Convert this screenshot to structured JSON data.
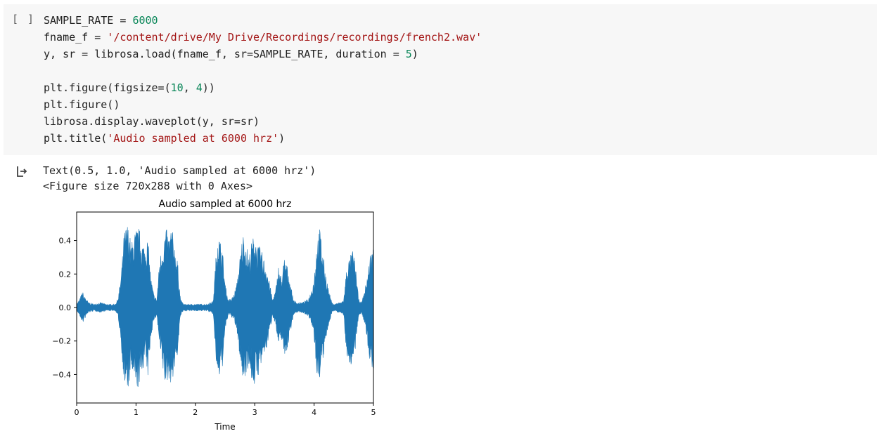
{
  "cell": {
    "run_indicator": "[ ]",
    "code_lines": [
      [
        {
          "t": "SAMPLE_RATE = ",
          "c": ""
        },
        {
          "t": "6000",
          "c": "num"
        }
      ],
      [
        {
          "t": "fname_f = ",
          "c": ""
        },
        {
          "t": "'/content/drive/My Drive/Recordings/recordings/french2.wav'",
          "c": "str"
        }
      ],
      [
        {
          "t": "y, sr = librosa.load(fname_f, sr=SAMPLE_RATE, duration = ",
          "c": ""
        },
        {
          "t": "5",
          "c": "num"
        },
        {
          "t": ")",
          "c": ""
        }
      ],
      [],
      [
        {
          "t": "plt.figure(figsize=(",
          "c": ""
        },
        {
          "t": "10",
          "c": "num"
        },
        {
          "t": ", ",
          "c": ""
        },
        {
          "t": "4",
          "c": "num"
        },
        {
          "t": "))",
          "c": ""
        }
      ],
      [
        {
          "t": "plt.figure()",
          "c": ""
        }
      ],
      [
        {
          "t": "librosa.display.waveplot(y, sr=sr)",
          "c": ""
        }
      ],
      [
        {
          "t": "plt.title(",
          "c": ""
        },
        {
          "t": "'Audio sampled at 6000 hrz'",
          "c": "str"
        },
        {
          "t": ")",
          "c": ""
        }
      ]
    ]
  },
  "output": {
    "icon": "output-arrow-icon",
    "lines": [
      "Text(0.5, 1.0, 'Audio sampled at 6000 hrz')",
      "<Figure size 720x288 with 0 Axes>"
    ]
  },
  "chart_data": {
    "type": "area",
    "title": "Audio sampled at 6000 hrz",
    "xlabel": "Time",
    "ylabel": "",
    "xlim": [
      0,
      5
    ],
    "ylim": [
      -0.57,
      0.57
    ],
    "xticks": [
      0,
      1,
      2,
      3,
      4,
      5
    ],
    "yticks": [
      0.4,
      0.2,
      0.0,
      -0.2,
      -0.4
    ],
    "ytick_labels": [
      "0.4",
      "0.2",
      "0.0",
      "−0.2",
      "−0.4"
    ],
    "grid": false,
    "color": "#1f77b4",
    "envelope": {
      "x": [
        0.0,
        0.05,
        0.1,
        0.12,
        0.15,
        0.2,
        0.3,
        0.4,
        0.5,
        0.6,
        0.65,
        0.7,
        0.75,
        0.8,
        0.85,
        0.88,
        0.92,
        0.95,
        1.0,
        1.05,
        1.1,
        1.15,
        1.2,
        1.25,
        1.3,
        1.35,
        1.4,
        1.45,
        1.5,
        1.55,
        1.6,
        1.65,
        1.7,
        1.75,
        1.8,
        1.9,
        2.0,
        2.1,
        2.2,
        2.3,
        2.35,
        2.38,
        2.42,
        2.45,
        2.5,
        2.55,
        2.6,
        2.65,
        2.7,
        2.75,
        2.8,
        2.85,
        2.9,
        2.95,
        3.0,
        3.05,
        3.1,
        3.15,
        3.2,
        3.25,
        3.3,
        3.35,
        3.4,
        3.45,
        3.5,
        3.55,
        3.6,
        3.65,
        3.7,
        3.75,
        3.8,
        3.85,
        3.9,
        3.95,
        4.0,
        4.05,
        4.1,
        4.15,
        4.2,
        4.25,
        4.3,
        4.35,
        4.4,
        4.45,
        4.5,
        4.55,
        4.6,
        4.65,
        4.7,
        4.75,
        4.8,
        4.85,
        4.9,
        4.95,
        5.0
      ],
      "upper": [
        0.02,
        0.05,
        0.1,
        0.07,
        0.06,
        0.03,
        0.02,
        0.03,
        0.02,
        0.02,
        0.02,
        0.06,
        0.2,
        0.45,
        0.51,
        0.47,
        0.38,
        0.42,
        0.47,
        0.48,
        0.4,
        0.38,
        0.42,
        0.18,
        0.08,
        0.05,
        0.3,
        0.38,
        0.48,
        0.43,
        0.49,
        0.38,
        0.28,
        0.05,
        0.02,
        0.02,
        0.02,
        0.02,
        0.02,
        0.04,
        0.33,
        0.47,
        0.4,
        0.38,
        0.15,
        0.05,
        0.05,
        0.08,
        0.15,
        0.3,
        0.45,
        0.4,
        0.3,
        0.4,
        0.45,
        0.37,
        0.36,
        0.3,
        0.25,
        0.15,
        0.05,
        0.1,
        0.25,
        0.18,
        0.3,
        0.25,
        0.15,
        0.05,
        0.03,
        0.03,
        0.03,
        0.04,
        0.05,
        0.1,
        0.18,
        0.42,
        0.48,
        0.32,
        0.2,
        0.1,
        0.03,
        0.02,
        0.03,
        0.03,
        0.05,
        0.25,
        0.3,
        0.35,
        0.25,
        0.05,
        0.03,
        0.1,
        0.2,
        0.33,
        0.37
      ],
      "lower": [
        -0.02,
        -0.05,
        -0.1,
        -0.08,
        -0.06,
        -0.03,
        -0.02,
        -0.03,
        -0.02,
        -0.02,
        -0.02,
        -0.06,
        -0.22,
        -0.47,
        -0.51,
        -0.48,
        -0.38,
        -0.42,
        -0.5,
        -0.48,
        -0.4,
        -0.3,
        -0.42,
        -0.18,
        -0.08,
        -0.05,
        -0.25,
        -0.38,
        -0.48,
        -0.43,
        -0.46,
        -0.38,
        -0.28,
        -0.05,
        -0.02,
        -0.02,
        -0.02,
        -0.02,
        -0.02,
        -0.04,
        -0.33,
        -0.47,
        -0.4,
        -0.38,
        -0.15,
        -0.05,
        -0.05,
        -0.08,
        -0.15,
        -0.3,
        -0.45,
        -0.4,
        -0.35,
        -0.45,
        -0.47,
        -0.42,
        -0.36,
        -0.3,
        -0.25,
        -0.15,
        -0.05,
        -0.1,
        -0.25,
        -0.18,
        -0.3,
        -0.25,
        -0.15,
        -0.05,
        -0.03,
        -0.03,
        -0.03,
        -0.04,
        -0.05,
        -0.1,
        -0.18,
        -0.45,
        -0.42,
        -0.32,
        -0.2,
        -0.1,
        -0.03,
        -0.02,
        -0.03,
        -0.03,
        -0.05,
        -0.3,
        -0.34,
        -0.35,
        -0.25,
        -0.05,
        -0.03,
        -0.1,
        -0.22,
        -0.36,
        -0.37
      ]
    }
  }
}
